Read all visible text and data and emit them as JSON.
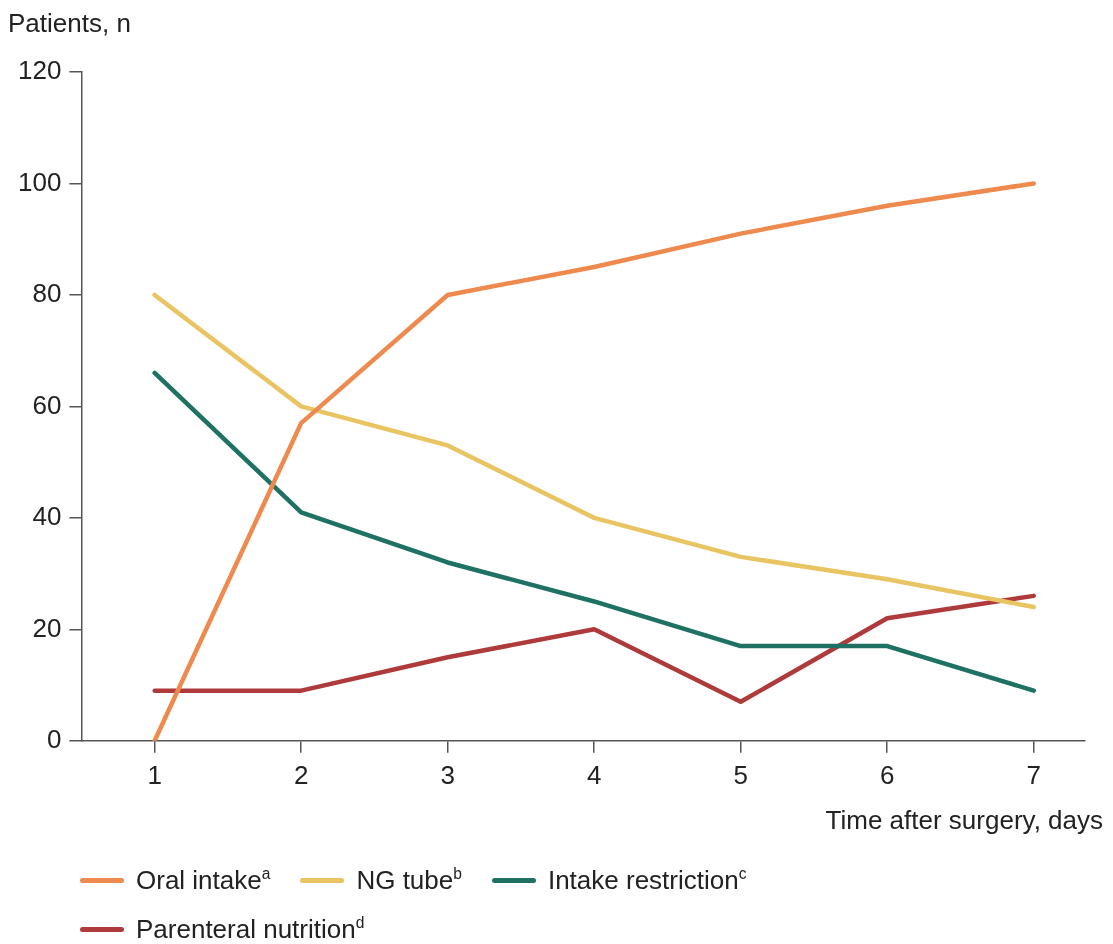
{
  "chart_data": {
    "type": "line",
    "ylabel": "Patients, n",
    "xlabel": "Time after surgery, days",
    "x": [
      1,
      2,
      3,
      4,
      5,
      6,
      7
    ],
    "xlim": [
      0.5,
      7.35
    ],
    "xticks": [
      1,
      2,
      3,
      4,
      5,
      6,
      7
    ],
    "ylim": [
      0,
      120
    ],
    "yticks": [
      0,
      20,
      40,
      60,
      80,
      100,
      120
    ],
    "grid": false,
    "legend": "bottom",
    "marker": "none",
    "line_style": "solid",
    "series": [
      {
        "name": "Oral intake$^{a}$",
        "color": "#ef8a4e",
        "values": [
          0,
          57,
          80,
          85,
          91,
          96,
          100
        ]
      },
      {
        "name": "NG tube$^{b}$",
        "color": "#e9c462",
        "values": [
          80,
          60,
          53,
          40,
          33,
          29,
          24
        ]
      },
      {
        "name": "Intake restriction$^{c}$",
        "color": "#1f7263",
        "values": [
          66,
          41,
          32,
          25,
          17,
          17,
          9
        ]
      },
      {
        "name": "Parenteral nutrition$^{d}$",
        "color": "#ae3a3c",
        "values": [
          9,
          9,
          15,
          20,
          7,
          22,
          26
        ]
      }
    ]
  }
}
